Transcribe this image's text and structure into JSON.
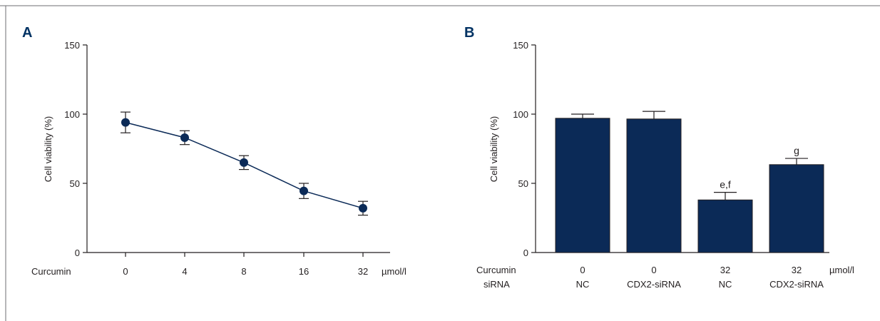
{
  "chart_data": [
    {
      "panel": "A",
      "type": "line",
      "ylabel": "Cell viability (%)",
      "ylim": [
        0,
        150
      ],
      "yticks": [
        0,
        50,
        100,
        150
      ],
      "x_row_label": "Curcumin",
      "x_unit": "µmol/l",
      "categories": [
        "0",
        "4",
        "8",
        "16",
        "32"
      ],
      "series": [
        {
          "values": [
            94,
            83,
            65,
            44.5,
            32
          ],
          "errors": [
            7.5,
            5,
            5,
            5.5,
            5
          ],
          "color": "#0b2a57"
        }
      ],
      "grid": false
    },
    {
      "panel": "B",
      "type": "bar",
      "ylabel": "Cell viability (%)",
      "ylim": [
        0,
        150
      ],
      "yticks": [
        0,
        50,
        100,
        150
      ],
      "rows": [
        {
          "label": "Curcumin",
          "values": [
            "0",
            "0",
            "32",
            "32"
          ],
          "unit": "µmol/l"
        },
        {
          "label": "siRNA",
          "values": [
            "NC",
            "CDX2-siRNA",
            "NC",
            "CDX2-siRNA"
          ]
        }
      ],
      "values": [
        97,
        96.5,
        38,
        63.5
      ],
      "errors": [
        3,
        5.5,
        5.5,
        4.5
      ],
      "annotations": [
        "",
        "",
        "e,f",
        "g"
      ],
      "color": "#0b2a57",
      "grid": false
    }
  ]
}
